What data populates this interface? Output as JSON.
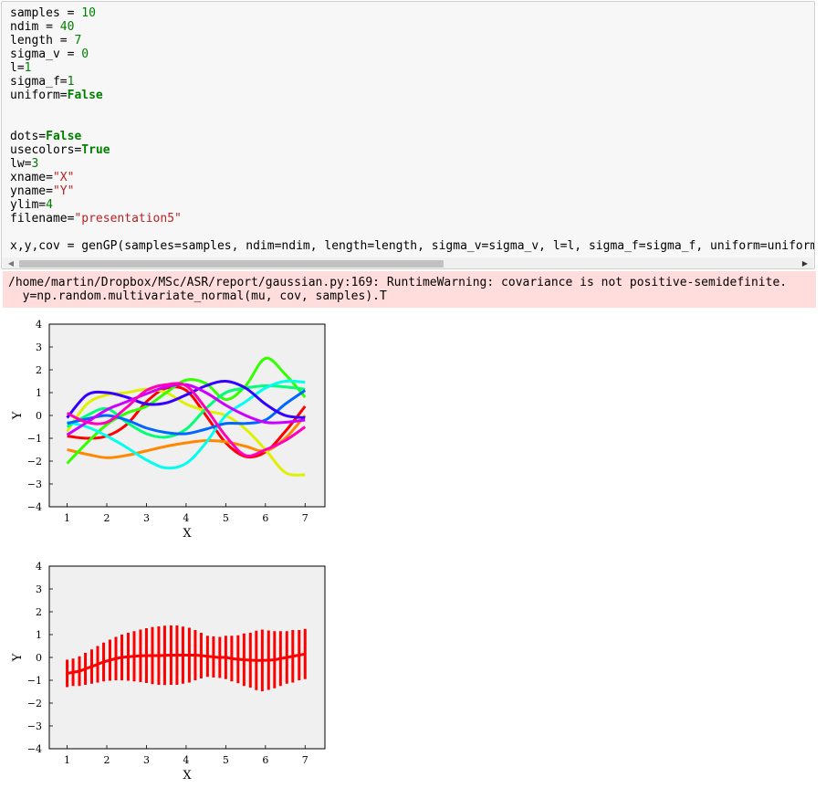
{
  "code": {
    "lines": [
      [
        {
          "t": "samples = "
        },
        {
          "t": "10",
          "c": "num"
        }
      ],
      [
        {
          "t": "ndim = "
        },
        {
          "t": "40",
          "c": "num"
        }
      ],
      [
        {
          "t": "length = "
        },
        {
          "t": "7",
          "c": "num"
        }
      ],
      [
        {
          "t": "sigma_v = "
        },
        {
          "t": "0",
          "c": "num"
        }
      ],
      [
        {
          "t": "l="
        },
        {
          "t": "1",
          "c": "num"
        }
      ],
      [
        {
          "t": "sigma_f="
        },
        {
          "t": "1",
          "c": "num"
        }
      ],
      [
        {
          "t": "uniform="
        },
        {
          "t": "False",
          "c": "kw"
        }
      ],
      [],
      [],
      [
        {
          "t": "dots="
        },
        {
          "t": "False",
          "c": "kw"
        }
      ],
      [
        {
          "t": "usecolors="
        },
        {
          "t": "True",
          "c": "kw"
        }
      ],
      [
        {
          "t": "lw="
        },
        {
          "t": "3",
          "c": "num"
        }
      ],
      [
        {
          "t": "xname="
        },
        {
          "t": "\"X\"",
          "c": "str"
        }
      ],
      [
        {
          "t": "yname="
        },
        {
          "t": "\"Y\"",
          "c": "str"
        }
      ],
      [
        {
          "t": "ylim="
        },
        {
          "t": "4",
          "c": "num"
        }
      ],
      [
        {
          "t": "filename="
        },
        {
          "t": "\"presentation5\"",
          "c": "str"
        }
      ],
      [],
      [
        {
          "t": "x,y,cov = genGP(samples=samples, ndim=ndim, length=length, sigma_v=sigma_v, l=l, sigma_f=sigma_f, uniform=uniform"
        }
      ]
    ]
  },
  "warning": {
    "lines": [
      "/home/martin/Dropbox/MSc/ASR/report/gaussian.py:169: RuntimeWarning: covariance is not positive-semidefinite.",
      "  y=np.random.multivariate_normal(mu, cov, samples).T"
    ]
  },
  "scrollbar": {
    "left_arrow": "◀",
    "right_arrow": "▶"
  },
  "colors": {
    "plot_bg": "#f0f0f0",
    "error_bar": "#ff0000"
  },
  "chart_data": [
    {
      "type": "line",
      "xlabel": "X",
      "ylabel": "Y",
      "xlim": [
        0.55,
        7.5
      ],
      "ylim": [
        -4,
        4
      ],
      "xticks": [
        1,
        2,
        3,
        4,
        5,
        6,
        7
      ],
      "yticks": [
        -4,
        -3,
        -2,
        -1,
        0,
        1,
        2,
        3,
        4
      ],
      "x": [
        1,
        1.5,
        2,
        2.5,
        3,
        3.5,
        4,
        4.5,
        5,
        5.5,
        6,
        6.5,
        7
      ],
      "series": [
        {
          "color": "#ff0000",
          "values": [
            -0.9,
            -1.0,
            -0.9,
            -0.4,
            0.6,
            1.2,
            1.1,
            0.0,
            -1.2,
            -1.8,
            -1.6,
            -0.7,
            0.4
          ]
        },
        {
          "color": "#ff8800",
          "values": [
            -1.5,
            -1.7,
            -1.85,
            -1.75,
            -1.55,
            -1.35,
            -1.2,
            -1.1,
            -1.15,
            -1.35,
            -1.55,
            -1.0,
            0.0
          ]
        },
        {
          "color": "#dff000",
          "values": [
            -0.7,
            0.5,
            0.9,
            1.0,
            1.15,
            1.0,
            0.5,
            0.2,
            0.0,
            -0.6,
            -1.5,
            -2.5,
            -2.6
          ]
        },
        {
          "color": "#33ff00",
          "values": [
            -2.1,
            -1.2,
            -0.4,
            0.1,
            0.4,
            1.0,
            1.55,
            1.4,
            0.7,
            1.3,
            2.5,
            1.8,
            0.8
          ]
        },
        {
          "color": "#00ff77",
          "values": [
            -0.5,
            0.0,
            0.3,
            -0.3,
            -0.8,
            -0.95,
            -0.6,
            0.3,
            1.0,
            1.2,
            1.3,
            1.25,
            1.15
          ]
        },
        {
          "color": "#00ffee",
          "values": [
            -0.3,
            -0.5,
            -0.9,
            -1.4,
            -1.95,
            -2.3,
            -2.1,
            -1.2,
            0.0,
            0.6,
            1.2,
            1.5,
            1.45
          ]
        },
        {
          "color": "#0066ff",
          "values": [
            -0.35,
            -0.15,
            0.0,
            -0.2,
            -0.55,
            -0.75,
            -0.8,
            -0.6,
            -0.35,
            -0.35,
            -0.2,
            0.5,
            1.1
          ]
        },
        {
          "color": "#3300ff",
          "values": [
            -0.1,
            0.9,
            1.0,
            0.8,
            0.5,
            0.55,
            0.9,
            1.3,
            1.5,
            1.2,
            0.5,
            0.0,
            -0.1
          ]
        },
        {
          "color": "#cc00ff",
          "values": [
            -0.85,
            -0.3,
            0.25,
            0.6,
            0.95,
            1.25,
            1.35,
            1.0,
            0.45,
            0.0,
            -0.3,
            -0.3,
            -0.2
          ]
        },
        {
          "color": "#ff00bb",
          "values": [
            0.1,
            -0.3,
            -0.3,
            0.35,
            1.1,
            1.35,
            1.3,
            0.3,
            -0.9,
            -1.75,
            -1.5,
            -1.1,
            -0.5
          ]
        }
      ]
    },
    {
      "type": "line",
      "xlabel": "X",
      "ylabel": "Y",
      "xlim": [
        0.55,
        7.5
      ],
      "ylim": [
        -4,
        4
      ],
      "xticks": [
        1,
        2,
        3,
        4,
        5,
        6,
        7
      ],
      "yticks": [
        -4,
        -3,
        -2,
        -1,
        0,
        1,
        2,
        3,
        4
      ],
      "x": [
        1.0,
        1.15,
        1.31,
        1.46,
        1.62,
        1.77,
        1.92,
        2.08,
        2.23,
        2.38,
        2.54,
        2.69,
        2.85,
        3.0,
        3.15,
        3.31,
        3.46,
        3.62,
        3.77,
        3.92,
        4.08,
        4.23,
        4.38,
        4.54,
        4.69,
        4.85,
        5.0,
        5.15,
        5.31,
        5.46,
        5.62,
        5.77,
        5.92,
        6.08,
        6.23,
        6.38,
        6.54,
        6.69,
        6.85,
        7.0
      ],
      "series": [
        {
          "color": "#ff0000",
          "values": [
            -0.7,
            -0.65,
            -0.6,
            -0.5,
            -0.4,
            -0.3,
            -0.2,
            -0.12,
            -0.05,
            0.0,
            0.03,
            0.05,
            0.07,
            0.08,
            0.08,
            0.08,
            0.09,
            0.1,
            0.1,
            0.1,
            0.1,
            0.1,
            0.08,
            0.05,
            0.02,
            0.0,
            0.0,
            -0.05,
            -0.08,
            -0.1,
            -0.12,
            -0.13,
            -0.13,
            -0.12,
            -0.1,
            -0.05,
            0.0,
            0.05,
            0.1,
            0.15
          ],
          "err": [
            0.6,
            0.6,
            0.65,
            0.7,
            0.75,
            0.8,
            0.85,
            0.9,
            0.95,
            1.0,
            1.05,
            1.1,
            1.15,
            1.2,
            1.25,
            1.28,
            1.3,
            1.3,
            1.3,
            1.25,
            1.2,
            1.1,
            1.0,
            0.9,
            0.9,
            0.9,
            0.95,
            1.0,
            1.05,
            1.15,
            1.2,
            1.3,
            1.35,
            1.3,
            1.25,
            1.2,
            1.15,
            1.15,
            1.1,
            1.1
          ]
        }
      ]
    }
  ]
}
